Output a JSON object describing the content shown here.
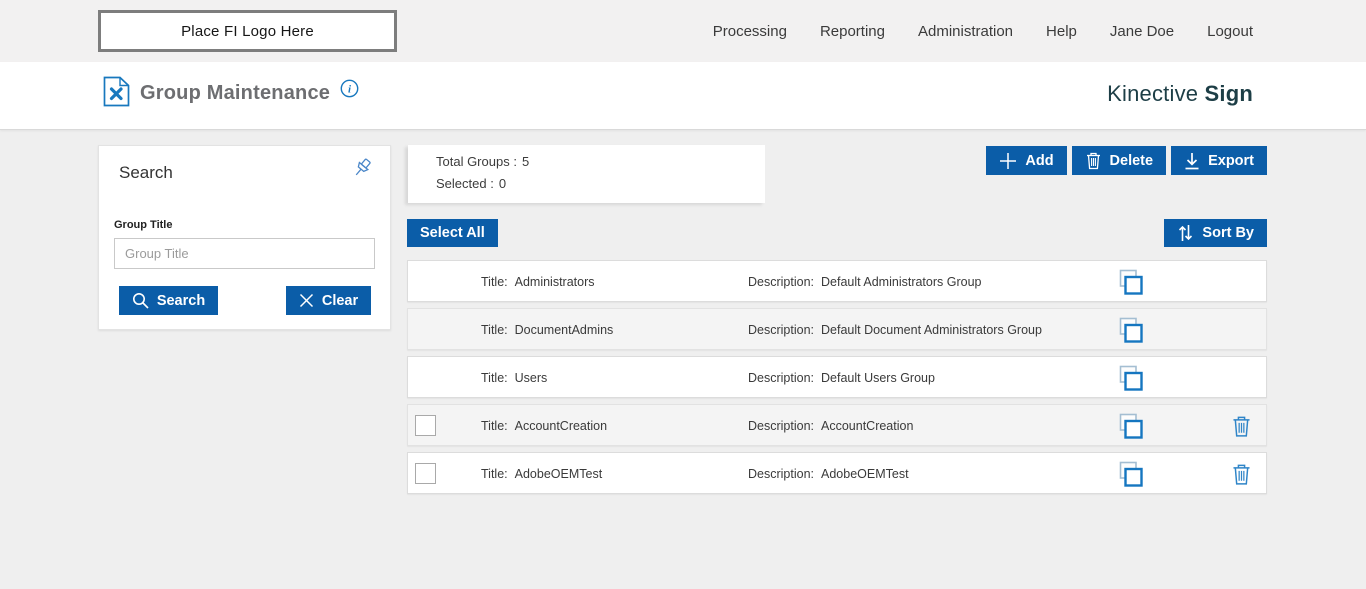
{
  "header": {
    "logo_text": "Place FI Logo Here",
    "nav": [
      "Processing",
      "Reporting",
      "Administration",
      "Help",
      "Jane Doe",
      "Logout"
    ]
  },
  "page": {
    "title": "Group Maintenance",
    "brand_name": "Kinective",
    "brand_product": "Sign"
  },
  "search_panel": {
    "heading": "Search",
    "field_label": "Group Title",
    "placeholder": "Group Title",
    "value": "",
    "search_button": "Search",
    "clear_button": "Clear"
  },
  "summary": {
    "total_label": "Total Groups :",
    "total_value": "5",
    "selected_label": "Selected :",
    "selected_value": "0"
  },
  "toolbar": {
    "add": "Add",
    "delete": "Delete",
    "export": "Export",
    "select_all": "Select All",
    "sort_by": "Sort By"
  },
  "groups": {
    "title_label": "Title:",
    "description_label": "Description:",
    "rows": [
      {
        "title": "Administrators",
        "description": "Default Administrators Group",
        "selectable": false,
        "deletable": false
      },
      {
        "title": "DocumentAdmins",
        "description": "Default Document Administrators Group",
        "selectable": false,
        "deletable": false
      },
      {
        "title": "Users",
        "description": "Default Users Group",
        "selectable": false,
        "deletable": false
      },
      {
        "title": "AccountCreation",
        "description": "AccountCreation",
        "selectable": true,
        "deletable": true
      },
      {
        "title": "AdobeOEMTest",
        "description": "AdobeOEMTest",
        "selectable": true,
        "deletable": true
      }
    ]
  },
  "colors": {
    "primary_blue": "#0b5da8",
    "icon_blue": "#1878be",
    "icon_light_blue": "#a4bed2",
    "brand_teal": "#1d3e46",
    "title_gray": "#6d6e71",
    "page_bg": "#efefef",
    "topbar_bg": "#f2f1f1"
  }
}
